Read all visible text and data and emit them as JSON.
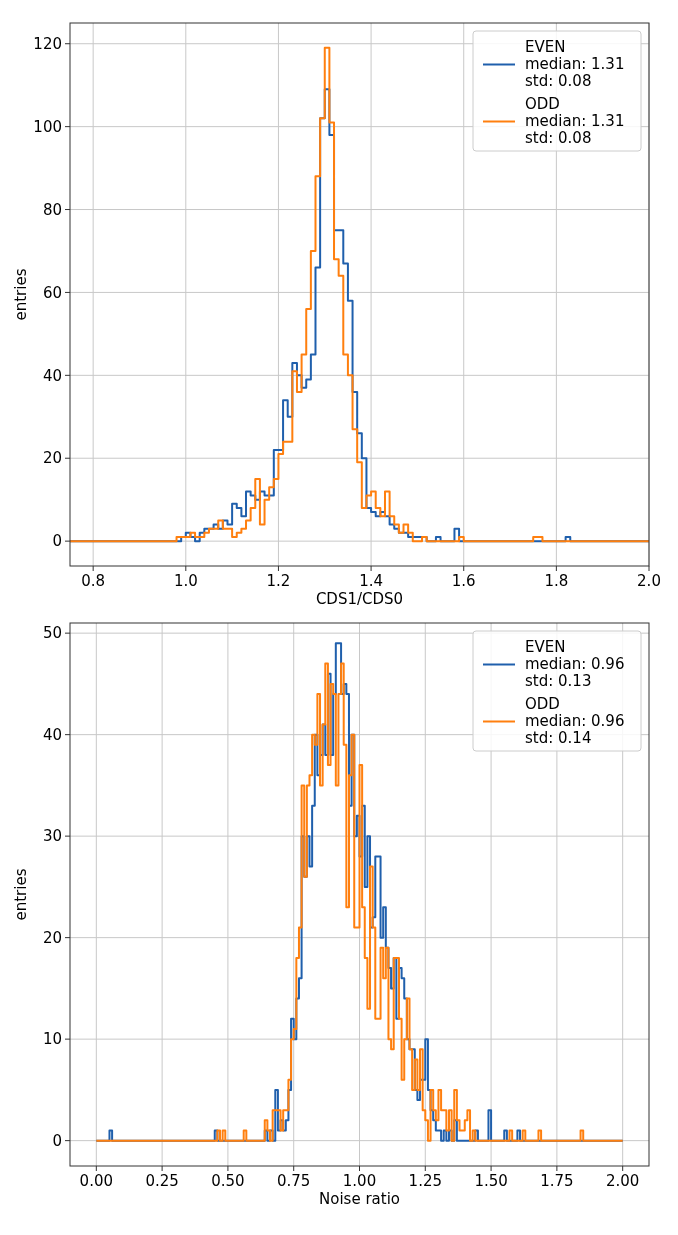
{
  "chart_data": [
    {
      "type": "histogram",
      "xlabel": "CDS1/CDS0",
      "ylabel": "entries",
      "xlim": [
        0.75,
        2.0
      ],
      "xticks": [
        0.8,
        {
          "value": 1.0,
          "label": "1.0"
        },
        1.2,
        1.4,
        1.6,
        1.8,
        {
          "value": 2.0,
          "label": "2.0"
        }
      ],
      "ylim": [
        -6,
        125
      ],
      "yticks": [
        0,
        20,
        40,
        60,
        80,
        100,
        120
      ],
      "grid": true,
      "legend": "top right",
      "bins": [
        0.75,
        0.98,
        0.99,
        1.0,
        1.01,
        1.02,
        1.03,
        1.04,
        1.05,
        1.06,
        1.07,
        1.08,
        1.09,
        1.1,
        1.11,
        1.12,
        1.13,
        1.14,
        1.15,
        1.16,
        1.17,
        1.18,
        1.19,
        1.2,
        1.21,
        1.22,
        1.23,
        1.24,
        1.25,
        1.26,
        1.27,
        1.28,
        1.29,
        1.3,
        1.31,
        1.32,
        1.33,
        1.34,
        1.35,
        1.36,
        1.37,
        1.38,
        1.39,
        1.4,
        1.41,
        1.42,
        1.43,
        1.44,
        1.45,
        1.46,
        1.47,
        1.48,
        1.49,
        1.5,
        1.51,
        1.52,
        1.53,
        1.54,
        1.55,
        1.56,
        1.57,
        1.58,
        1.59,
        1.6,
        1.75,
        1.77,
        1.82,
        1.83,
        2.0
      ],
      "series": [
        {
          "name": "EVEN\nmedian: 1.31\nstd: 0.08",
          "color": "#1f5fac",
          "values": [
            0,
            0,
            1,
            2,
            1,
            0,
            2,
            3,
            3,
            4,
            3,
            5,
            4,
            9,
            8,
            6,
            12,
            11,
            10,
            12,
            11,
            11,
            22,
            22,
            34,
            30,
            43,
            40,
            37,
            39,
            45,
            66,
            102,
            109,
            98,
            75,
            75,
            67,
            58,
            36,
            26,
            20,
            8,
            7,
            6,
            7,
            6,
            4,
            3,
            2,
            2,
            1,
            1,
            1,
            1,
            0,
            0,
            1,
            0,
            0,
            0,
            3,
            0,
            0,
            0,
            0,
            1,
            0
          ]
        },
        {
          "name": "ODD\nmedian: 1.31\nstd: 0.08",
          "color": "#ff7f0e",
          "values": [
            0,
            1,
            1,
            1,
            2,
            1,
            1,
            2,
            3,
            3,
            5,
            3,
            3,
            1,
            2,
            3,
            5,
            8,
            15,
            4,
            10,
            13,
            15,
            21,
            24,
            24,
            41,
            36,
            45,
            56,
            70,
            88,
            102,
            119,
            101,
            68,
            64,
            45,
            40,
            27,
            19,
            8,
            11,
            12,
            8,
            6,
            12,
            6,
            4,
            2,
            4,
            2,
            0,
            0,
            1,
            0,
            0,
            0,
            0,
            0,
            0,
            0,
            1,
            0,
            1,
            0,
            0,
            0
          ]
        }
      ]
    },
    {
      "type": "histogram",
      "xlabel": "Noise ratio",
      "ylabel": "entries",
      "xlim": [
        -0.1,
        2.1
      ],
      "xticks": [
        {
          "value": 0,
          "label": "0.00"
        },
        0.25,
        {
          "value": 0.5,
          "label": "0.50"
        },
        0.75,
        {
          "value": 1,
          "label": "1.00"
        },
        1.25,
        {
          "value": 1.5,
          "label": "1.50"
        },
        1.75,
        {
          "value": 2,
          "label": "2.00"
        }
      ],
      "ylim": [
        -2.5,
        51
      ],
      "yticks": [
        0,
        10,
        20,
        30,
        40,
        50
      ],
      "grid": true,
      "legend": "top right",
      "bins": [
        0,
        0.05,
        0.06,
        0.45,
        0.46,
        0.47,
        0.48,
        0.49,
        0.5,
        0.56,
        0.57,
        0.6,
        0.61,
        0.62,
        0.63,
        0.64,
        0.65,
        0.66,
        0.67,
        0.68,
        0.69,
        0.7,
        0.71,
        0.72,
        0.73,
        0.74,
        0.75,
        0.76,
        0.77,
        0.78,
        0.79,
        0.8,
        0.81,
        0.82,
        0.83,
        0.84,
        0.85,
        0.86,
        0.87,
        0.88,
        0.89,
        0.9,
        0.91,
        0.92,
        0.93,
        0.94,
        0.95,
        0.96,
        0.97,
        0.98,
        0.99,
        1.0,
        1.01,
        1.02,
        1.03,
        1.04,
        1.05,
        1.06,
        1.07,
        1.08,
        1.09,
        1.1,
        1.11,
        1.12,
        1.13,
        1.14,
        1.15,
        1.16,
        1.17,
        1.18,
        1.19,
        1.2,
        1.21,
        1.22,
        1.23,
        1.24,
        1.25,
        1.26,
        1.27,
        1.28,
        1.29,
        1.3,
        1.31,
        1.32,
        1.33,
        1.34,
        1.35,
        1.36,
        1.37,
        1.38,
        1.39,
        1.4,
        1.41,
        1.42,
        1.43,
        1.44,
        1.45,
        1.46,
        1.47,
        1.48,
        1.49,
        1.5,
        1.51,
        1.52,
        1.53,
        1.54,
        1.55,
        1.56,
        1.57,
        1.58,
        1.59,
        1.6,
        1.61,
        1.62,
        1.63,
        1.64,
        1.65,
        1.66,
        1.67,
        1.68,
        1.69,
        1.7,
        1.84,
        1.85,
        2.0
      ],
      "series": [
        {
          "name": "EVEN\nmedian: 0.96\nstd: 0.13",
          "color": "#1f5fac",
          "values": [
            0,
            1,
            0,
            1,
            0,
            0,
            0,
            0,
            0,
            0,
            0,
            0,
            0,
            0,
            0,
            1,
            0,
            1,
            0,
            5,
            1,
            2,
            1,
            2,
            5,
            12,
            10,
            14,
            16,
            30,
            26,
            30,
            27,
            33,
            40,
            36,
            38,
            41,
            38,
            46,
            38,
            44,
            49,
            49,
            44,
            45,
            44,
            33,
            40,
            30,
            32,
            28,
            33,
            25,
            30,
            21,
            22,
            28,
            28,
            20,
            23,
            19,
            17,
            15,
            18,
            12,
            17,
            16,
            14,
            10,
            9,
            9,
            5,
            4,
            6,
            6,
            10,
            5,
            3,
            2,
            1,
            1,
            0,
            1,
            0,
            1,
            0,
            2,
            0,
            0,
            0,
            0,
            0,
            0,
            0,
            1,
            0,
            0,
            0,
            0,
            3,
            0,
            0,
            0,
            0,
            0,
            1,
            0,
            0,
            0,
            0,
            1,
            0,
            0,
            0,
            0,
            0,
            0,
            0,
            0,
            0,
            0,
            0,
            0
          ]
        },
        {
          "name": "ODD\nmedian: 0.96\nstd: 0.14",
          "color": "#ff7f0e",
          "values": [
            0,
            0,
            0,
            0,
            1,
            0,
            1,
            0,
            0,
            1,
            0,
            0,
            0,
            0,
            0,
            2,
            1,
            0,
            3,
            3,
            3,
            1,
            3,
            3,
            6,
            10,
            11,
            18,
            21,
            35,
            26,
            35,
            36,
            40,
            39,
            44,
            35,
            41,
            47,
            37,
            45,
            44,
            35,
            44,
            47,
            39,
            23,
            36,
            40,
            21,
            21,
            37,
            23,
            18,
            13,
            27,
            21,
            12,
            12,
            19,
            16,
            19,
            10,
            9,
            18,
            18,
            12,
            6,
            10,
            14,
            9,
            5,
            8,
            5,
            9,
            3,
            2,
            0,
            5,
            3,
            2,
            5,
            3,
            3,
            1,
            3,
            0,
            5,
            2,
            1,
            1,
            2,
            3,
            0,
            1,
            0,
            0,
            0,
            0,
            0,
            0,
            0,
            0,
            0,
            0,
            0,
            0,
            0,
            1,
            0,
            0,
            0,
            0,
            1,
            0,
            0,
            0,
            0,
            0,
            1,
            0,
            0,
            1,
            0
          ]
        }
      ]
    }
  ]
}
